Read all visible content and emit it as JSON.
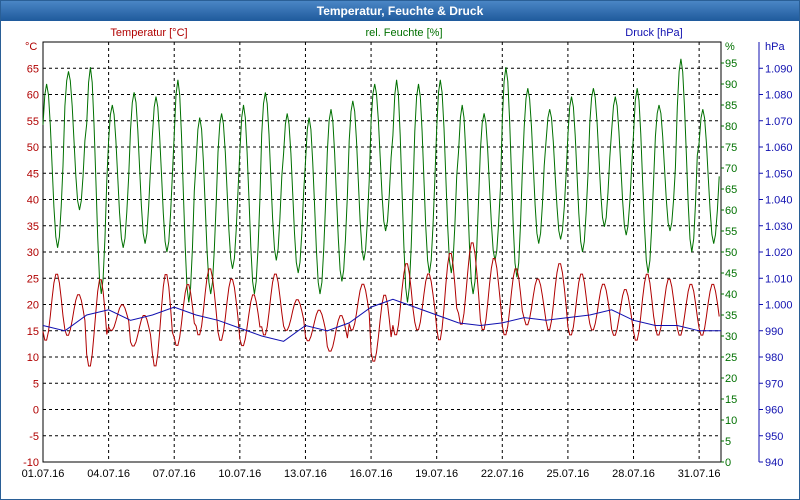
{
  "window": {
    "title": "Temperatur, Feuchte & Druck",
    "colors": {
      "titlebar": "#1f5a9c",
      "frame": "#2a5f96"
    }
  },
  "chart_data": {
    "type": "line",
    "grid": true,
    "x_ticks": [
      "01.07.16",
      "04.07.16",
      "07.07.16",
      "10.07.16",
      "13.07.16",
      "16.07.16",
      "19.07.16",
      "22.07.16",
      "25.07.16",
      "28.07.16",
      "31.07.16"
    ],
    "xlim": [
      0,
      31
    ],
    "axes": {
      "temperature": {
        "unit": "°C",
        "ylim": [
          -10,
          70
        ],
        "ticks": [
          "-10",
          "-5",
          "0",
          "5",
          "10",
          "15",
          "20",
          "25",
          "30",
          "35",
          "40",
          "45",
          "50",
          "55",
          "60",
          "65"
        ]
      },
      "humidity": {
        "unit": "%",
        "ylim": [
          0,
          100
        ],
        "ticks": [
          "0",
          "5",
          "10",
          "15",
          "20",
          "25",
          "30",
          "35",
          "40",
          "45",
          "50",
          "55",
          "60",
          "65",
          "70",
          "75",
          "80",
          "85",
          "90",
          "95"
        ]
      },
      "pressure": {
        "unit": "hPa",
        "ylim": [
          940,
          1100
        ],
        "ticks": [
          "940",
          "950",
          "960",
          "970",
          "980",
          "990",
          "1.000",
          "1.010",
          "1.020",
          "1.030",
          "1.040",
          "1.050",
          "1.060",
          "1.070",
          "1.080",
          "1.090"
        ]
      }
    },
    "series": [
      {
        "name": "Temperatur [°C]",
        "axis": "temperature",
        "color": "#b00000",
        "daily_max": [
          26,
          22,
          25,
          20,
          18,
          26,
          24,
          27,
          25,
          22,
          26,
          21,
          19,
          18,
          24,
          22,
          28,
          26,
          30,
          32,
          29,
          27,
          25,
          28,
          26,
          24,
          23,
          26,
          25,
          24,
          24
        ],
        "daily_min": [
          13,
          14,
          8,
          15,
          12,
          8,
          12,
          14,
          13,
          12,
          14,
          15,
          13,
          11,
          15,
          9,
          14,
          15,
          13,
          16,
          15,
          14,
          16,
          15,
          14,
          15,
          14,
          13,
          14,
          14,
          14
        ]
      },
      {
        "name": "rel. Feuchte [%]",
        "axis": "humidity",
        "color": "#007000",
        "daily_max": [
          90,
          93,
          94,
          85,
          88,
          87,
          91,
          82,
          83,
          85,
          88,
          83,
          82,
          84,
          86,
          90,
          91,
          90,
          91,
          85,
          83,
          94,
          89,
          84,
          87,
          89,
          87,
          89,
          85,
          96,
          84
        ],
        "daily_min": [
          51,
          60,
          40,
          51,
          52,
          50,
          38,
          40,
          46,
          40,
          48,
          45,
          40,
          43,
          48,
          55,
          38,
          45,
          45,
          40,
          48,
          44,
          52,
          53,
          50,
          56,
          54,
          45,
          55,
          50,
          52
        ]
      },
      {
        "name": "Druck [hPa]",
        "axis": "pressure",
        "color": "#1010b0",
        "daily_values": [
          992,
          990,
          996,
          998,
          994,
          996,
          999,
          996,
          994,
          991,
          988,
          986,
          992,
          990,
          993,
          999,
          1002,
          999,
          996,
          993,
          992,
          993,
          995,
          994,
          995,
          996,
          998,
          994,
          992,
          992,
          990
        ]
      }
    ]
  }
}
